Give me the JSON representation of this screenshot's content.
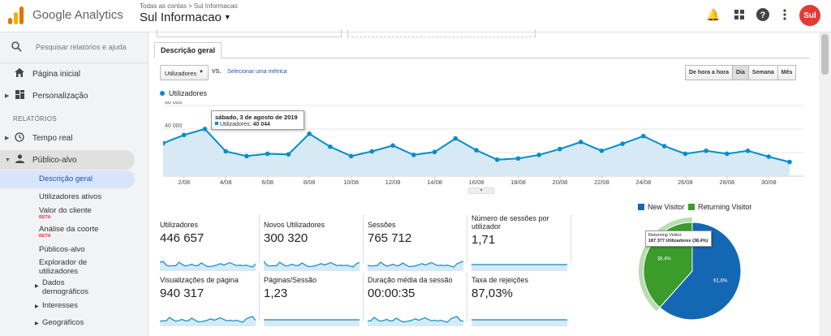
{
  "header": {
    "app_name": "Google Analytics",
    "breadcrumb": "Todas as contas > Sul Informacao",
    "property": "Sul Informacao",
    "avatar_text": "Sul"
  },
  "sidebar": {
    "search_placeholder": "Pesquisar relatórios e ajuda",
    "home": "Página inicial",
    "customization": "Personalização",
    "section_reports": "RELATÓRIOS",
    "realtime": "Tempo real",
    "audience": "Público-alvo",
    "audience_items": [
      {
        "label": "Descrição geral"
      },
      {
        "label": "Utilizadores ativos"
      },
      {
        "label": "Valor do cliente",
        "badge": "BETA"
      },
      {
        "label": "Análise da coorte",
        "badge": "BETA"
      },
      {
        "label": "Públicos-alvo"
      },
      {
        "label": "Explorador de utilizadores"
      },
      {
        "label": "Dados demográficos"
      },
      {
        "label": "Interesses"
      },
      {
        "label": "Geográficos"
      }
    ]
  },
  "main": {
    "tab": "Descrição geral",
    "metric_select": "Utilizadores",
    "vs": "VS.",
    "select_metric": "Selecionar uma métrica",
    "time_buttons": [
      {
        "label": "De hora a hora",
        "active": false
      },
      {
        "label": "Dia",
        "active": true
      },
      {
        "label": "Semana",
        "active": false
      },
      {
        "label": "Mês",
        "active": false
      }
    ],
    "legend": "Utilizadores",
    "tooltip": {
      "date": "sábado, 3 de agosto de 2019",
      "label": "Utilizadores:",
      "value": "40 044"
    }
  },
  "chart_data": {
    "type": "area",
    "series": [
      {
        "name": "Utilizadores",
        "values": [
          28000,
          35000,
          40044,
          21000,
          17000,
          19000,
          18500,
          36000,
          25000,
          17000,
          21000,
          26000,
          18000,
          20500,
          32000,
          22000,
          14000,
          15000,
          18000,
          23000,
          29000,
          21500,
          27500,
          34000,
          25500,
          19000,
          21500,
          19000,
          21500,
          16500,
          12000
        ]
      }
    ],
    "x": [
      "1/08",
      "2/08",
      "3/08",
      "4/08",
      "5/08",
      "6/08",
      "7/08",
      "8/08",
      "9/08",
      "10/08",
      "11/08",
      "12/08",
      "13/08",
      "14/08",
      "15/08",
      "16/08",
      "17/08",
      "18/08",
      "19/08",
      "20/08",
      "21/08",
      "22/08",
      "23/08",
      "24/08",
      "25/08",
      "26/08",
      "27/08",
      "28/08",
      "29/08",
      "30/08",
      "31/08"
    ],
    "x_tick_labels": [
      "2/08",
      "4/08",
      "6/08",
      "8/08",
      "10/08",
      "12/08",
      "14/08",
      "16/08",
      "18/08",
      "20/08",
      "22/08",
      "24/08",
      "26/08",
      "28/08",
      "30/08"
    ],
    "y_tick_labels": [
      "60 000",
      "40 000",
      "20 000"
    ],
    "ylim": [
      0,
      60000
    ],
    "color": "#058dc7"
  },
  "metrics": [
    {
      "label": "Utilizadores",
      "value": "446 657"
    },
    {
      "label": "Novos Utilizadores",
      "value": "300 320"
    },
    {
      "label": "Sessões",
      "value": "765 712"
    },
    {
      "label": "Número de sessões por utilizador",
      "value": "1,71"
    },
    {
      "label": "Visualizações de página",
      "value": "940 317"
    },
    {
      "label": "Páginas/Sessão",
      "value": "1,23"
    },
    {
      "label": "Duração média da sessão",
      "value": "00:00:35"
    },
    {
      "label": "Taxa de rejeições",
      "value": "87,03%"
    }
  ],
  "pie": {
    "legend": [
      {
        "label": "New Visitor",
        "color": "#1468b3"
      },
      {
        "label": "Returning Visitor",
        "color": "#3b9b2b"
      }
    ],
    "slices": [
      {
        "name": "New Visitor",
        "percent": 61.6,
        "label": "61,6%"
      },
      {
        "name": "Returning Visitor",
        "percent": 38.4,
        "label": "38,4%"
      }
    ],
    "tooltip_title": "Returning Visitor",
    "tooltip_value": "187 377 Utilizadores (38,4%)"
  }
}
